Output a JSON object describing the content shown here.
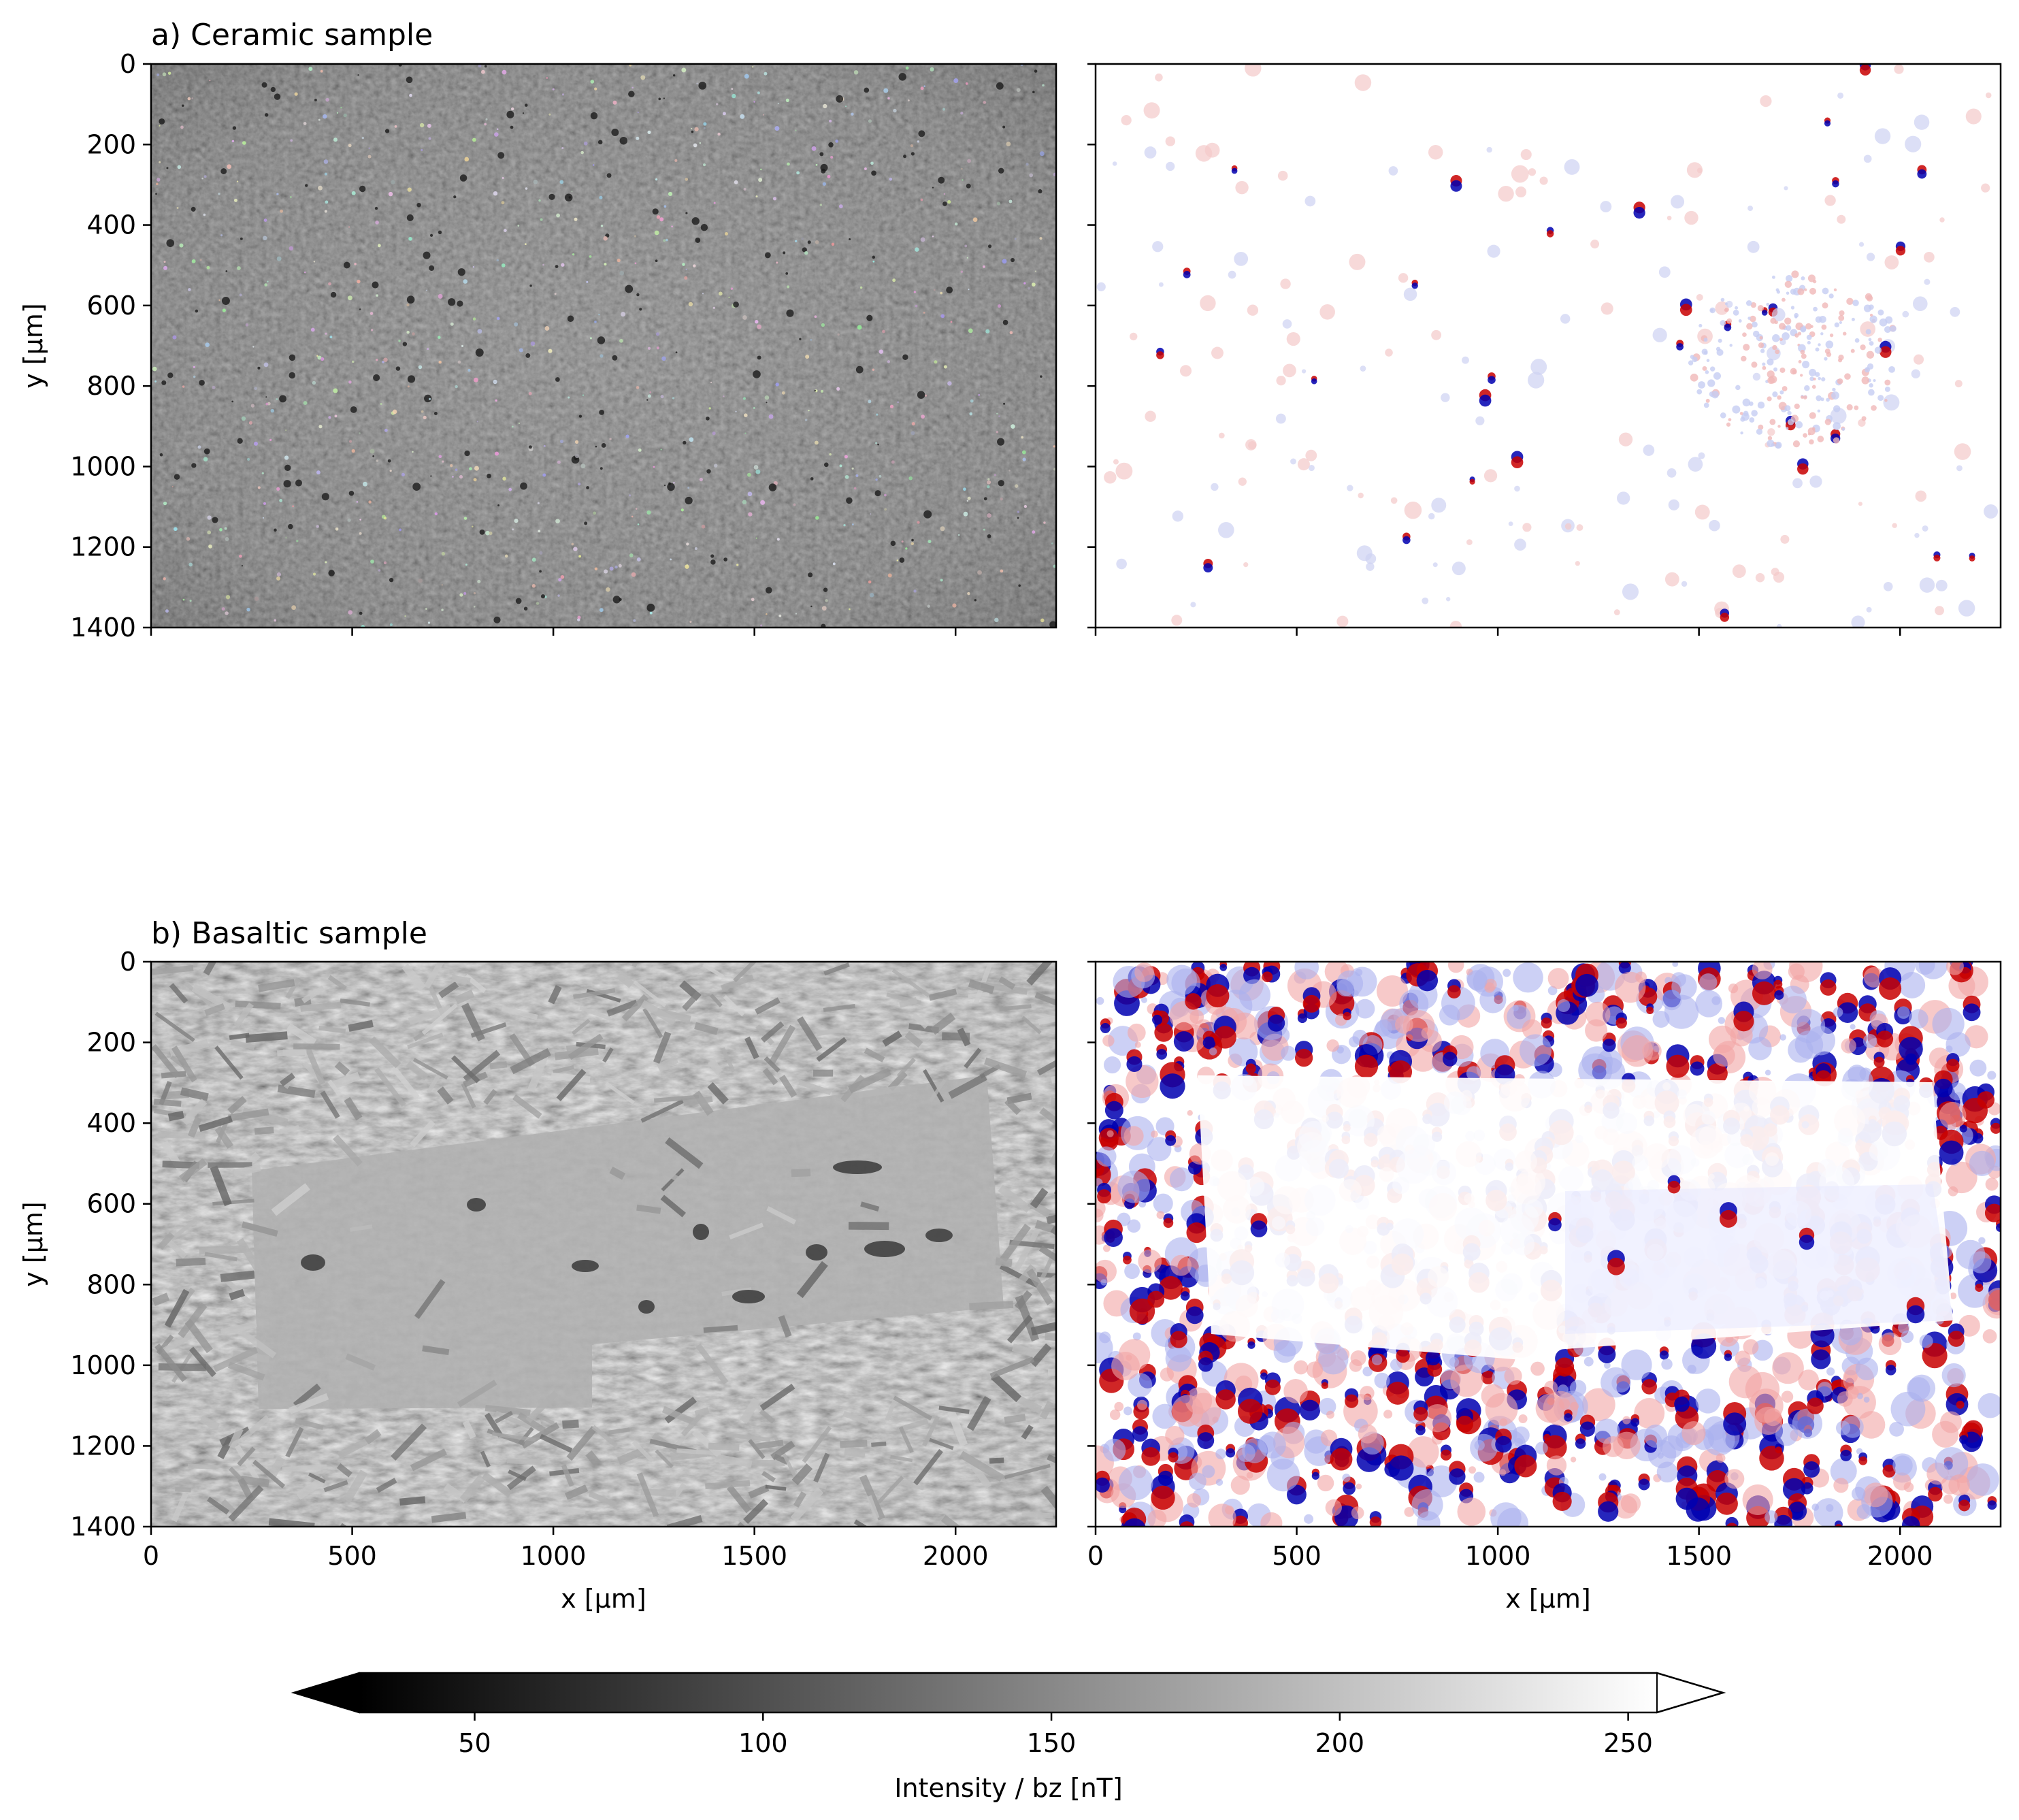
{
  "colors": {
    "map_negative": "#0000b0",
    "map_zero": "#ffffff",
    "map_positive": "#c80000",
    "colorbar_low": "#000000",
    "colorbar_high": "#ffffff"
  },
  "chart_data": [
    {
      "type": "heatmap",
      "panel": "a",
      "title": "a) Ceramic sample",
      "description_of_left_image": "optical microscopy image (grayscale)",
      "description_of_right_image": "magnetic field map bz (red/blue diverging)",
      "xlabel": "",
      "ylabel": "y [µm]",
      "xlim": [
        0,
        2250
      ],
      "ylim": [
        1400,
        0
      ],
      "xticks": [
        "0",
        "500",
        "1000",
        "1500",
        "2000"
      ],
      "xticklabels_visible": false,
      "yticks": [
        "0",
        "200",
        "400",
        "600",
        "800",
        "1000",
        "1200",
        "1400"
      ],
      "ytick_values": [
        0,
        200,
        400,
        600,
        800,
        1000,
        1200,
        1400
      ],
      "xtick_values": [
        0,
        500,
        1000,
        1500,
        2000
      ]
    },
    {
      "type": "heatmap",
      "panel": "b",
      "title": "b) Basaltic sample",
      "xlabel": "x [µm]",
      "ylabel": "y [µm]",
      "xlim": [
        0,
        2250
      ],
      "ylim": [
        1400,
        0
      ],
      "xticks": [
        "0",
        "500",
        "1000",
        "1500",
        "2000"
      ],
      "xticklabels_visible": true,
      "yticks": [
        "0",
        "200",
        "400",
        "600",
        "800",
        "1000",
        "1200",
        "1400"
      ],
      "ytick_values": [
        0,
        200,
        400,
        600,
        800,
        1000,
        1200,
        1400
      ],
      "xtick_values": [
        0,
        500,
        1000,
        1500,
        2000
      ]
    }
  ],
  "colorbar": {
    "label": "Intensity / bz [nT]",
    "range": [
      30,
      255
    ],
    "tick_values": [
      50,
      100,
      150,
      200,
      250
    ],
    "tick_labels": [
      "50",
      "100",
      "150",
      "200",
      "250"
    ],
    "extend": "both"
  }
}
